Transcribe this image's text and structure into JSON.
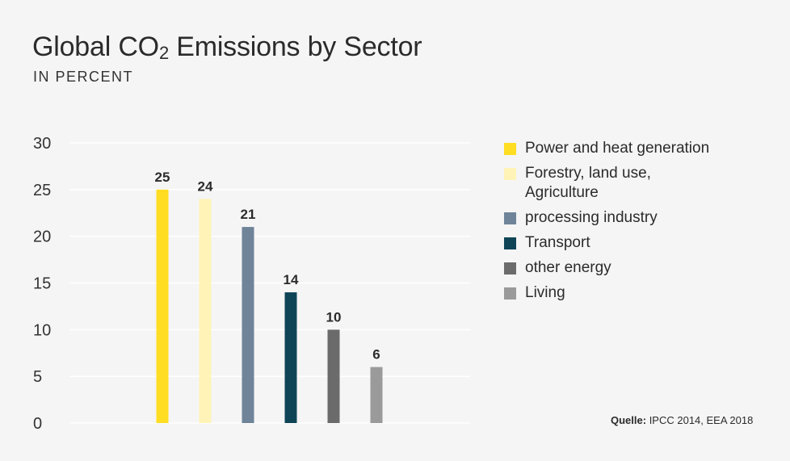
{
  "header": {
    "title_main": "Global CO",
    "title_sub": "2",
    "title_rest": " Emissions by Sector",
    "subtitle": "IN PERCENT"
  },
  "source": {
    "label": "Quelle:",
    "text": " IPCC 2014, EEA 2018"
  },
  "chart_data": {
    "type": "bar",
    "title": "Global CO2 Emissions by Sector",
    "subtitle": "IN PERCENT",
    "xlabel": "",
    "ylabel": "",
    "ylim": [
      0,
      30
    ],
    "yticks": [
      0,
      5,
      10,
      15,
      20,
      25,
      30
    ],
    "grid": true,
    "legend_position": "right",
    "categories": [
      "Power and heat generation",
      "Forestry, land use, Agriculture",
      "processing industry",
      "Transport",
      "other energy",
      "Living"
    ],
    "values": [
      25,
      24,
      21,
      14,
      10,
      6
    ],
    "colors": [
      "#ffdd22",
      "#fff3b8",
      "#6f8499",
      "#0f4457",
      "#6b6b6b",
      "#9a9a9a"
    ]
  },
  "legend": [
    {
      "label": "Power and heat generation",
      "color": "#ffdd22"
    },
    {
      "label": "Forestry, land use, Agriculture",
      "color": "#fff3b8"
    },
    {
      "label": "processing industry",
      "color": "#6f8499"
    },
    {
      "label": "Transport",
      "color": "#0f4457"
    },
    {
      "label": "other energy",
      "color": "#6b6b6b"
    },
    {
      "label": "Living",
      "color": "#9a9a9a"
    }
  ]
}
